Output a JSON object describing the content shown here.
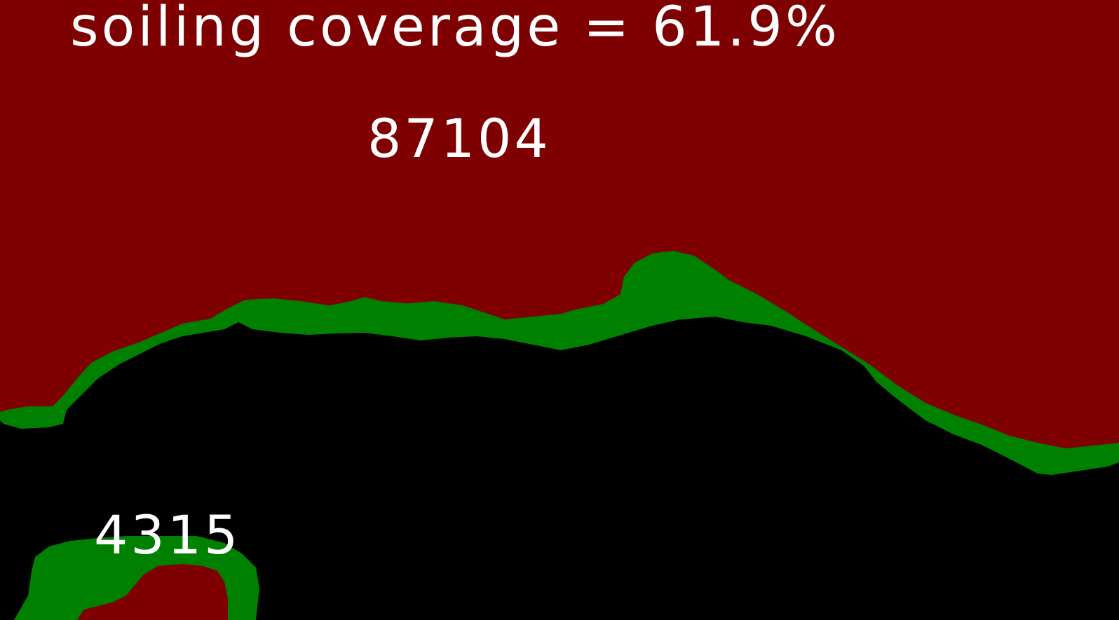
{
  "overlay": {
    "coverage_label": "soiling coverage = 61.9%",
    "regions": [
      {
        "pixel_count": "87104"
      },
      {
        "pixel_count": "4315"
      }
    ]
  },
  "colors": {
    "soiled_region": "#7f0000",
    "region_boundary": "#008000",
    "clean_region": "#000000",
    "label_text": "#ffffff"
  }
}
